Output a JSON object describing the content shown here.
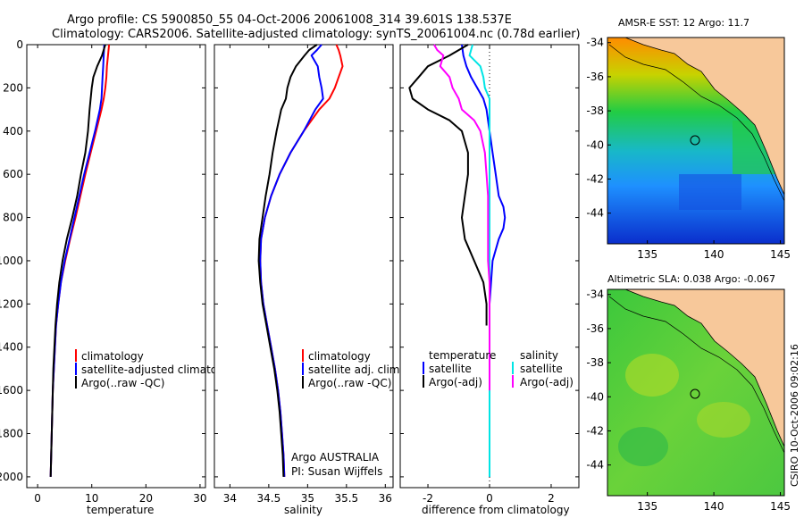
{
  "header": {
    "line1": "Argo profile: CS 5900850_55 04-Oct-2006 20061008_314 39.601S 138.537E",
    "line2": "Climatology: CARS2006. Satellite-adjusted climatology: synTS_20061004.nc (0.78d earlier)"
  },
  "side_label": "CSIRO 10-Oct-2006 09:02:16",
  "colors": {
    "climatology": "#ff0000",
    "satellite": "#0000ff",
    "argo": "#000000",
    "sal_sat": "#00e5e5",
    "sal_argo": "#ff00ff",
    "land": "#f7c89a"
  },
  "chart_data": [
    {
      "type": "line",
      "id": "temperature",
      "xlabel": "temperature",
      "xlim": [
        -2,
        31
      ],
      "ylim": [
        0,
        2050
      ],
      "xticks": [
        "0",
        "10",
        "20",
        "30"
      ],
      "xtick_values": [
        0,
        10,
        20,
        30
      ],
      "yticks": [
        "0",
        "200",
        "400",
        "600",
        "800",
        "1000",
        "1200",
        "1400",
        "1600",
        "1800",
        "2000"
      ],
      "ytick_values": [
        0,
        200,
        400,
        600,
        800,
        1000,
        1200,
        1400,
        1600,
        1800,
        2000
      ],
      "legend": [
        "climatology",
        "satellite-adjusted climatology",
        "Argo(..raw -QC)"
      ],
      "series": [
        {
          "name": "climatology",
          "color": "#ff0000",
          "depth": [
            0,
            50,
            100,
            150,
            200,
            250,
            300,
            400,
            500,
            600,
            700,
            800,
            900,
            1000,
            1100,
            1200,
            1300,
            1400,
            1500,
            1600,
            1700,
            1800,
            1900,
            2000
          ],
          "values": [
            13.2,
            13.0,
            12.8,
            12.7,
            12.5,
            12.2,
            11.8,
            10.8,
            9.8,
            8.8,
            7.9,
            7.0,
            6.0,
            5.1,
            4.3,
            3.8,
            3.4,
            3.2,
            3.0,
            2.8,
            2.7,
            2.6,
            2.5,
            2.4
          ]
        },
        {
          "name": "satellite-adjusted climatology",
          "color": "#0000ff",
          "depth": [
            0,
            50,
            100,
            150,
            200,
            250,
            300,
            400,
            500,
            600,
            700,
            800,
            900,
            1000,
            1100,
            1200,
            1300,
            1400,
            1500,
            1600,
            1700,
            1800,
            1900,
            2000
          ],
          "values": [
            12.3,
            12.2,
            12.1,
            12.0,
            11.9,
            11.8,
            11.5,
            10.6,
            9.6,
            8.6,
            7.7,
            6.8,
            5.9,
            5.0,
            4.3,
            3.8,
            3.4,
            3.2,
            3.0,
            2.8,
            2.7,
            2.6,
            2.5,
            2.4
          ]
        },
        {
          "name": "Argo(..raw -QC)",
          "color": "#000000",
          "depth": [
            0,
            50,
            100,
            150,
            200,
            250,
            300,
            400,
            500,
            600,
            700,
            800,
            900,
            1000,
            1100,
            1200,
            1300,
            1400,
            1500,
            1600,
            1700,
            1800,
            1900,
            2000
          ],
          "values": [
            12.5,
            11.9,
            11.0,
            10.3,
            10.0,
            9.8,
            9.6,
            9.3,
            8.8,
            8.0,
            7.3,
            6.4,
            5.4,
            4.6,
            4.0,
            3.6,
            3.3,
            3.1,
            2.9,
            2.8,
            2.7,
            2.6,
            2.5,
            2.4
          ]
        }
      ]
    },
    {
      "type": "line",
      "id": "salinity",
      "xlabel": "salinity",
      "xlim": [
        33.8,
        36.1
      ],
      "ylim": [
        0,
        2050
      ],
      "xticks": [
        "34",
        "34.5",
        "35",
        "35.5",
        "36"
      ],
      "xtick_values": [
        34,
        34.5,
        35,
        35.5,
        36
      ],
      "legend": [
        "climatology",
        "satellite adj. clim.",
        "Argo(..raw -QC)"
      ],
      "annotation": [
        "Argo AUSTRALIA",
        "PI: Susan Wijffels"
      ],
      "series": [
        {
          "name": "climatology",
          "color": "#ff0000",
          "depth": [
            0,
            25,
            50,
            100,
            150,
            200,
            250,
            300,
            400,
            500,
            600,
            700,
            800,
            900,
            1000,
            1100,
            1200,
            1300,
            1400,
            1500,
            1600,
            1700,
            1800,
            1900,
            2000
          ],
          "values": [
            35.37,
            35.4,
            35.42,
            35.45,
            35.4,
            35.35,
            35.28,
            35.15,
            34.95,
            34.78,
            34.64,
            34.53,
            34.45,
            34.4,
            34.39,
            34.4,
            34.43,
            34.48,
            34.53,
            34.58,
            34.62,
            34.65,
            34.67,
            34.69,
            34.7
          ]
        },
        {
          "name": "satellite adj. clim.",
          "color": "#0000ff",
          "depth": [
            0,
            25,
            50,
            100,
            150,
            200,
            250,
            300,
            400,
            500,
            600,
            700,
            800,
            900,
            1000,
            1100,
            1200,
            1300,
            1400,
            1500,
            1600,
            1700,
            1800,
            1900,
            2000
          ],
          "values": [
            35.18,
            35.12,
            35.05,
            35.13,
            35.15,
            35.18,
            35.2,
            35.1,
            34.95,
            34.78,
            34.64,
            34.53,
            34.45,
            34.4,
            34.39,
            34.4,
            34.43,
            34.48,
            34.53,
            34.58,
            34.62,
            34.65,
            34.67,
            34.69,
            34.7
          ]
        },
        {
          "name": "Argo(..raw -QC)",
          "color": "#000000",
          "depth": [
            0,
            25,
            50,
            100,
            150,
            200,
            250,
            300,
            400,
            500,
            600,
            700,
            800,
            900,
            1000,
            1100,
            1200,
            1300,
            1400,
            1500,
            1600,
            1700,
            1800,
            1900,
            2000
          ],
          "values": [
            35.12,
            35.02,
            34.96,
            34.85,
            34.78,
            34.74,
            34.72,
            34.66,
            34.6,
            34.55,
            34.51,
            34.46,
            34.42,
            34.38,
            34.37,
            34.39,
            34.42,
            34.47,
            34.52,
            34.57,
            34.61,
            34.64,
            34.66,
            34.68,
            34.69
          ]
        }
      ]
    },
    {
      "type": "line",
      "id": "difference",
      "xlabel": "difference from climatology",
      "xlim": [
        -2.9,
        2.9
      ],
      "ylim": [
        0,
        2050
      ],
      "xticks": [
        "-2",
        "0",
        "2"
      ],
      "xtick_values": [
        -2,
        0,
        2
      ],
      "legend_temperature": [
        "temperature",
        "satellite",
        "Argo(-adj)"
      ],
      "legend_salinity": [
        "salinity",
        "satellite",
        "Argo(-adj)"
      ],
      "series": [
        {
          "name": "temperature satellite",
          "color": "#0000ff",
          "depth": [
            0,
            50,
            100,
            150,
            200,
            250,
            300,
            400,
            500,
            600,
            700,
            750,
            800,
            850,
            900,
            1000,
            1100,
            1200,
            1300,
            1400,
            1500,
            1600,
            1700,
            1800,
            1900,
            2000
          ],
          "values": [
            -0.9,
            -0.85,
            -0.75,
            -0.6,
            -0.4,
            -0.2,
            -0.1,
            0.0,
            0.1,
            0.2,
            0.3,
            0.45,
            0.5,
            0.45,
            0.3,
            0.1,
            0.05,
            0.0,
            0.0,
            0.0,
            0.0,
            0.0,
            0.0,
            0.0,
            0.0,
            0.0
          ]
        },
        {
          "name": "temperature Argo(-adj)",
          "color": "#000000",
          "depth": [
            0,
            50,
            100,
            150,
            200,
            250,
            300,
            350,
            400,
            500,
            600,
            700,
            800,
            900,
            1000,
            1100,
            1200,
            1300
          ],
          "values": [
            -0.7,
            -1.3,
            -2.0,
            -2.3,
            -2.6,
            -2.5,
            -2.0,
            -1.3,
            -0.9,
            -0.7,
            -0.7,
            -0.8,
            -0.9,
            -0.8,
            -0.5,
            -0.2,
            -0.1,
            -0.1
          ]
        },
        {
          "name": "salinity satellite",
          "color": "#00e5e5",
          "depth": [
            0,
            50,
            100,
            150,
            200,
            250,
            300,
            400,
            500,
            600,
            800,
            1000,
            1200,
            1400,
            1600,
            1800,
            2000
          ],
          "values": [
            -0.55,
            -0.65,
            -0.3,
            -0.2,
            -0.15,
            0.0,
            0.0,
            0.0,
            0.0,
            0.0,
            0.0,
            0.0,
            0.0,
            0.0,
            0.0,
            0.0,
            0.0
          ]
        },
        {
          "name": "salinity Argo(-adj)",
          "color": "#ff00ff",
          "depth": [
            0,
            25,
            50,
            100,
            150,
            200,
            250,
            300,
            350,
            400,
            500,
            600,
            700,
            800,
            900,
            1000,
            1100,
            1200,
            1300,
            1400,
            1500,
            1600
          ],
          "values": [
            -1.8,
            -1.7,
            -1.5,
            -1.6,
            -1.3,
            -1.2,
            -1.0,
            -0.9,
            -0.5,
            -0.3,
            -0.15,
            -0.1,
            -0.05,
            -0.05,
            -0.05,
            -0.05,
            0.0,
            0.0,
            0.0,
            0.0,
            0.0,
            0.0
          ]
        }
      ]
    },
    {
      "type": "heatmap",
      "id": "sst-map",
      "title": "AMSR-E SST: 12 Argo: 11.7",
      "xticks": [
        "135",
        "140",
        "145"
      ],
      "xtick_values": [
        135,
        140,
        145
      ],
      "yticks": [
        "-34",
        "-36",
        "-38",
        "-40",
        "-42",
        "-44"
      ],
      "ytick_values": [
        -34,
        -36,
        -38,
        -40,
        -42,
        -44
      ],
      "xlim": [
        132,
        145.3
      ],
      "ylim": [
        -45.8,
        -33.7
      ],
      "float_position": [
        138.537,
        -39.601
      ]
    },
    {
      "type": "heatmap",
      "id": "sla-map",
      "title": "Altimetric SLA: 0.038 Argo: -0.067",
      "xticks": [
        "135",
        "140",
        "145"
      ],
      "xtick_values": [
        135,
        140,
        145
      ],
      "yticks": [
        "-34",
        "-36",
        "-38",
        "-40",
        "-42",
        "-44"
      ],
      "ytick_values": [
        -34,
        -36,
        -38,
        -40,
        -42,
        -44
      ],
      "xlim": [
        132,
        145.3
      ],
      "ylim": [
        -45.8,
        -33.7
      ],
      "float_position": [
        138.537,
        -39.601
      ]
    }
  ]
}
